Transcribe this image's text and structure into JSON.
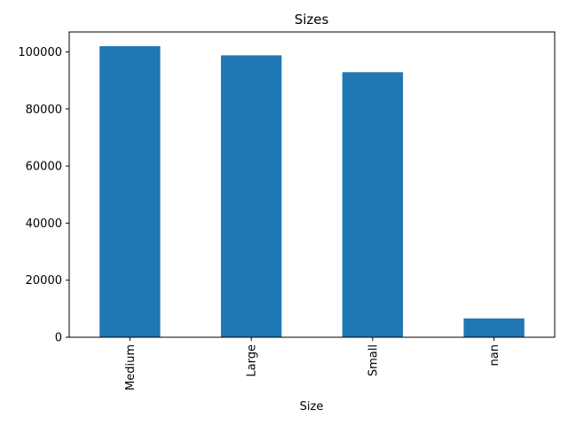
{
  "chart_data": {
    "type": "bar",
    "title": "Sizes",
    "xlabel": "Size",
    "ylabel": "",
    "categories": [
      "Medium",
      "Large",
      "Small",
      "nan"
    ],
    "values": [
      102000,
      98800,
      92900,
      6600
    ],
    "ylim": [
      0,
      107000
    ],
    "yticks": [
      0,
      20000,
      40000,
      60000,
      80000,
      100000
    ],
    "bar_color": "#1f77b4",
    "grid": false,
    "legend": "none"
  }
}
